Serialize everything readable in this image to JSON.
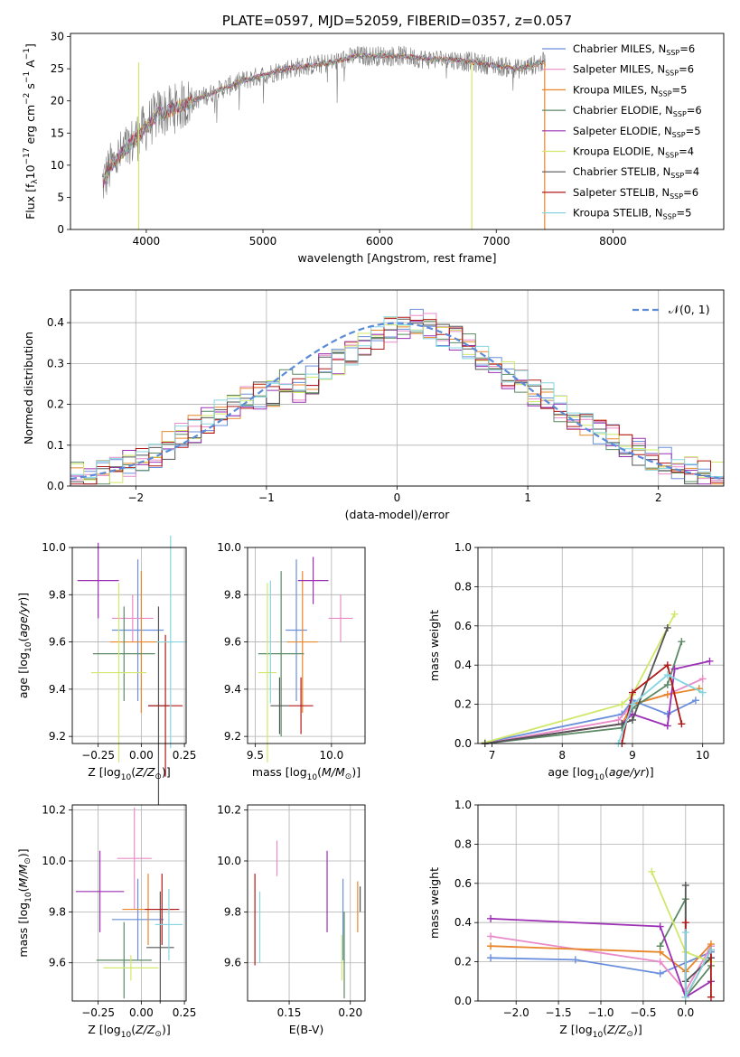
{
  "colors": [
    "#6a8fdc",
    "#e98bc8",
    "#e8862a",
    "#5b8a64",
    "#9c30b5",
    "#cfe86a",
    "#555555",
    "#b01919",
    "#86d4e0"
  ],
  "chart_data": [
    {
      "id": "spectrum",
      "type": "line",
      "title": "PLATE=0597, MJD=52059, FIBERID=0357, z=0.057",
      "xlabel": "wavelength [Angstrom, rest frame]",
      "ylabel": "Flux [f_λ10^-17 erg cm^-2 s^-1 A^-1]",
      "xlim": [
        3350,
        8950
      ],
      "ylim": [
        0,
        30.5
      ],
      "xticks": [
        4000,
        5000,
        6000,
        7000,
        8000
      ],
      "yticks": [
        0,
        5,
        10,
        15,
        20,
        25,
        30
      ],
      "grid": false,
      "legend": "right",
      "legend_entries": [
        {
          "base": "Chabrier MILES, N",
          "sub": "SSP",
          "tail": "=6"
        },
        {
          "base": "Salpeter MILES, N",
          "sub": "SSP",
          "tail": "=6"
        },
        {
          "base": "Kroupa MILES, N",
          "sub": "SSP",
          "tail": "=5"
        },
        {
          "base": "Chabrier ELODIE, N",
          "sub": "SSP",
          "tail": "=6"
        },
        {
          "base": "Salpeter ELODIE, N",
          "sub": "SSP",
          "tail": "=5"
        },
        {
          "base": "Kroupa ELODIE, N",
          "sub": "SSP",
          "tail": "=4"
        },
        {
          "base": "Chabrier STELIB, N",
          "sub": "SSP",
          "tail": "=4"
        },
        {
          "base": "Salpeter STELIB, N",
          "sub": "SSP",
          "tail": "=6"
        },
        {
          "base": "Kroupa STELIB, N",
          "sub": "SSP",
          "tail": "=5"
        }
      ],
      "continuum": {
        "x": [
          3620,
          3700,
          3800,
          3900,
          4000,
          4100,
          4200,
          4400,
          4600,
          4800,
          5000,
          5200,
          5400,
          5600,
          5800,
          6000,
          6200,
          6400,
          6600,
          6800,
          7000,
          7200,
          7400
        ],
        "y": [
          7,
          10,
          12,
          14,
          16,
          18,
          18.5,
          20,
          21.5,
          23,
          24,
          25,
          25.5,
          26,
          27,
          27,
          27,
          26.5,
          26.5,
          26,
          25.5,
          25,
          26
        ]
      }
    },
    {
      "id": "residuals",
      "type": "step",
      "xlabel": "(data-model)/error",
      "ylabel": "Normed distribution",
      "xlim": [
        -2.5,
        2.5
      ],
      "ylim": [
        0,
        0.48
      ],
      "xticks": [
        -2,
        -1,
        0,
        1,
        2
      ],
      "yticks": [
        0.0,
        0.1,
        0.2,
        0.3,
        0.4
      ],
      "grid": true,
      "legend": "top-right",
      "gauss_label": "𝒩(0, 1)",
      "bins": {
        "start": -2.5,
        "width": 0.1,
        "values": [
          0.03,
          0.025,
          0.03,
          0.04,
          0.055,
          0.07,
          0.08,
          0.1,
          0.12,
          0.14,
          0.16,
          0.18,
          0.19,
          0.21,
          0.22,
          0.23,
          0.25,
          0.24,
          0.26,
          0.29,
          0.3,
          0.32,
          0.34,
          0.36,
          0.38,
          0.39,
          0.4,
          0.39,
          0.37,
          0.36,
          0.34,
          0.32,
          0.3,
          0.27,
          0.25,
          0.23,
          0.22,
          0.19,
          0.17,
          0.15,
          0.13,
          0.12,
          0.1,
          0.085,
          0.07,
          0.06,
          0.05,
          0.04,
          0.03,
          0.03
        ]
      }
    },
    {
      "id": "age-vs-z",
      "type": "errorbar",
      "xlabel": "Z [log10(Z/Z⊙)]",
      "ylabel": "age  [log10(age/yr)]",
      "xlim": [
        -0.4,
        0.26
      ],
      "ylim": [
        9.17,
        10.0
      ],
      "xticks": [
        -0.25,
        0.0,
        0.25
      ],
      "xtick_labels": [
        "−0.25",
        "0.00",
        "0.25"
      ],
      "yticks": [
        9.2,
        9.4,
        9.6,
        9.8,
        10.0
      ],
      "grid": true,
      "points": [
        {
          "c": 0,
          "x": -0.02,
          "y": 9.65,
          "xerr": 0.15,
          "yerr": 0.3
        },
        {
          "c": 1,
          "x": -0.05,
          "y": 9.7,
          "xerr": 0.12,
          "yerr": 0.1
        },
        {
          "c": 2,
          "x": 0.0,
          "y": 9.6,
          "xerr": 0.18,
          "yerr": 0.3
        },
        {
          "c": 3,
          "x": -0.1,
          "y": 9.55,
          "xerr": 0.18,
          "yerr": 0.2
        },
        {
          "c": 4,
          "x": -0.25,
          "y": 9.86,
          "xerr": 0.12,
          "yerr": 0.16
        },
        {
          "c": 5,
          "x": -0.13,
          "y": 9.47,
          "xerr": 0.16,
          "yerr": 0.38
        },
        {
          "c": 6,
          "x": 0.1,
          "y": 9.33,
          "xerr": 0.06,
          "yerr": 0.42
        },
        {
          "c": 7,
          "x": 0.14,
          "y": 9.33,
          "xerr": 0.1,
          "yerr": 0.3
        },
        {
          "c": 8,
          "x": 0.17,
          "y": 9.6,
          "xerr": 0.08,
          "yerr": 0.45
        }
      ]
    },
    {
      "id": "age-vs-mass",
      "type": "errorbar",
      "xlabel": "mass [log10(M/M⊙)]",
      "ylabel": "",
      "xlim": [
        9.45,
        10.22
      ],
      "ylim": [
        9.17,
        10.0
      ],
      "xticks": [
        9.5,
        10.0
      ],
      "xtick_labels": [
        "9.5",
        "10.0"
      ],
      "yticks": [
        9.2,
        9.4,
        9.6,
        9.8,
        10.0
      ],
      "grid": true,
      "points": [
        {
          "c": 0,
          "x": 9.77,
          "y": 9.65,
          "xerr": 0.07,
          "yerr": 0.3
        },
        {
          "c": 1,
          "x": 10.06,
          "y": 9.7,
          "xerr": 0.08,
          "yerr": 0.1
        },
        {
          "c": 2,
          "x": 9.81,
          "y": 9.6,
          "xerr": 0.1,
          "yerr": 0.3
        },
        {
          "c": 3,
          "x": 9.67,
          "y": 9.55,
          "xerr": 0.15,
          "yerr": 0.35
        },
        {
          "c": 4,
          "x": 9.88,
          "y": 9.86,
          "xerr": 0.1,
          "yerr": 0.1
        },
        {
          "c": 5,
          "x": 9.58,
          "y": 9.47,
          "xerr": 0.06,
          "yerr": 0.38
        },
        {
          "c": 6,
          "x": 9.66,
          "y": 9.33,
          "xerr": 0.06,
          "yerr": 0.12
        },
        {
          "c": 7,
          "x": 9.8,
          "y": 9.33,
          "xerr": 0.08,
          "yerr": 0.12
        },
        {
          "c": 8,
          "x": 9.6,
          "y": 9.6,
          "xerr": 0.0,
          "yerr": 0.26
        }
      ]
    },
    {
      "id": "weight-vs-age",
      "type": "line",
      "xlabel": "age  [log10(age/yr)]",
      "ylabel": "mass weight",
      "xlim": [
        6.8,
        10.3
      ],
      "ylim": [
        0,
        1
      ],
      "xticks": [
        7,
        8,
        9,
        10
      ],
      "yticks": [
        0.0,
        0.2,
        0.4,
        0.6,
        0.8,
        1.0
      ],
      "grid": true,
      "series": [
        {
          "c": 0,
          "x": [
            6.9,
            8.85,
            9.0,
            9.5,
            9.9
          ],
          "y": [
            0.005,
            0.15,
            0.22,
            0.15,
            0.22
          ]
        },
        {
          "c": 1,
          "x": [
            6.9,
            8.8,
            9.0,
            9.5,
            10.0
          ],
          "y": [
            0.0,
            0.12,
            0.2,
            0.25,
            0.33
          ]
        },
        {
          "c": 2,
          "x": [
            6.9,
            8.85,
            9.0,
            9.5,
            9.95
          ],
          "y": [
            0.0,
            0.1,
            0.2,
            0.25,
            0.28
          ]
        },
        {
          "c": 3,
          "x": [
            6.9,
            8.85,
            9.0,
            9.5,
            9.7
          ],
          "y": [
            0.0,
            0.08,
            0.18,
            0.3,
            0.52
          ]
        },
        {
          "c": 4,
          "x": [
            6.9,
            8.85,
            9.0,
            9.5,
            9.6,
            10.1
          ],
          "y": [
            0.0,
            0.1,
            0.15,
            0.09,
            0.38,
            0.42
          ]
        },
        {
          "c": 5,
          "x": [
            6.9,
            8.85,
            9.0,
            9.6
          ],
          "y": [
            0.005,
            0.2,
            0.25,
            0.66
          ]
        },
        {
          "c": 6,
          "x": [
            6.9,
            8.85,
            9.0,
            9.5
          ],
          "y": [
            0.0,
            0.1,
            0.12,
            0.59
          ]
        },
        {
          "c": 7,
          "x": [
            8.85,
            9.0,
            9.5,
            9.7
          ],
          "y": [
            0.0,
            0.26,
            0.4,
            0.1
          ]
        },
        {
          "c": 8,
          "x": [
            8.8,
            9.0,
            9.5,
            10.0
          ],
          "y": [
            0.0,
            0.2,
            0.35,
            0.26
          ]
        }
      ]
    },
    {
      "id": "mass-vs-z",
      "type": "errorbar",
      "xlabel": "Z [log10(Z/Z⊙)]",
      "ylabel": "mass [log10(M/M⊙)]",
      "xlim": [
        -0.4,
        0.26
      ],
      "ylim": [
        9.45,
        10.22
      ],
      "xticks": [
        -0.25,
        0.0,
        0.25
      ],
      "xtick_labels": [
        "−0.25",
        "0.00",
        "0.25"
      ],
      "yticks": [
        9.6,
        9.8,
        10.0,
        10.2
      ],
      "grid": true,
      "points": [
        {
          "c": 0,
          "x": -0.02,
          "y": 9.77,
          "xerr": 0.15,
          "yerr": 0.16
        },
        {
          "c": 1,
          "x": -0.04,
          "y": 10.01,
          "xerr": 0.1,
          "yerr": 0.2
        },
        {
          "c": 2,
          "x": 0.04,
          "y": 9.81,
          "xerr": 0.15,
          "yerr": 0.14
        },
        {
          "c": 3,
          "x": -0.1,
          "y": 9.61,
          "xerr": 0.16,
          "yerr": 0.15
        },
        {
          "c": 4,
          "x": -0.24,
          "y": 9.88,
          "xerr": 0.14,
          "yerr": 0.16
        },
        {
          "c": 5,
          "x": -0.06,
          "y": 9.58,
          "xerr": 0.16,
          "yerr": 0.05
        },
        {
          "c": 6,
          "x": 0.11,
          "y": 9.66,
          "xerr": 0.08,
          "yerr": 0.22
        },
        {
          "c": 7,
          "x": 0.12,
          "y": 9.81,
          "xerr": 0.1,
          "yerr": 0.14
        },
        {
          "c": 8,
          "x": 0.16,
          "y": 9.75,
          "xerr": 0.08,
          "yerr": 0.14
        }
      ]
    },
    {
      "id": "mass-vs-ebv",
      "type": "errorbar",
      "xlabel": "E(B-V)",
      "ylabel": "",
      "xlim": [
        0.116,
        0.212
      ],
      "ylim": [
        9.45,
        10.22
      ],
      "xticks": [
        0.15,
        0.2
      ],
      "xtick_labels": [
        "0.15",
        "0.20"
      ],
      "yticks": [
        9.6,
        9.8,
        10.0,
        10.2
      ],
      "grid": true,
      "points": [
        {
          "c": 0,
          "x": 0.194,
          "y": 9.77,
          "xerr": 0,
          "yerr": 0.16
        },
        {
          "c": 1,
          "x": 0.14,
          "y": 10.01,
          "xerr": 0,
          "yerr": 0.07
        },
        {
          "c": 2,
          "x": 0.206,
          "y": 9.82,
          "xerr": 0,
          "yerr": 0.1
        },
        {
          "c": 3,
          "x": 0.195,
          "y": 9.63,
          "xerr": 0,
          "yerr": 0.17
        },
        {
          "c": 4,
          "x": 0.181,
          "y": 9.88,
          "xerr": 0,
          "yerr": 0.16
        },
        {
          "c": 5,
          "x": 0.193,
          "y": 9.62,
          "xerr": 0,
          "yerr": 0.09
        },
        {
          "c": 6,
          "x": 0.208,
          "y": 9.85,
          "xerr": 0,
          "yerr": 0.05
        },
        {
          "c": 7,
          "x": 0.122,
          "y": 9.77,
          "xerr": 0,
          "yerr": 0.18
        },
        {
          "c": 8,
          "x": 0.126,
          "y": 9.74,
          "xerr": 0,
          "yerr": 0.14
        }
      ]
    },
    {
      "id": "weight-vs-z",
      "type": "line",
      "xlabel": "Z [log10(Z/Z⊙)]",
      "ylabel": "mass weight",
      "xlim": [
        -2.45,
        0.45
      ],
      "ylim": [
        0,
        1
      ],
      "xticks": [
        -2.0,
        -1.5,
        -1.0,
        -0.5,
        0.0
      ],
      "xtick_labels": [
        "−2.0",
        "−1.5",
        "−1.0",
        "−0.5",
        "0.0"
      ],
      "yticks": [
        0.0,
        0.2,
        0.4,
        0.6,
        0.8,
        1.0
      ],
      "grid": true,
      "series": [
        {
          "c": 0,
          "x": [
            -2.3,
            -1.3,
            -0.3,
            0.3
          ],
          "y": [
            0.22,
            0.21,
            0.14,
            0.25
          ]
        },
        {
          "c": 1,
          "x": [
            -2.3,
            -0.3,
            0.0,
            0.3
          ],
          "y": [
            0.33,
            0.2,
            0.05,
            0.28
          ]
        },
        {
          "c": 2,
          "x": [
            -2.3,
            -0.3,
            0.0,
            0.3
          ],
          "y": [
            0.28,
            0.25,
            0.15,
            0.29
          ]
        },
        {
          "c": 3,
          "x": [
            -0.3,
            0.0,
            0.0,
            0.3
          ],
          "y": [
            0.28,
            0.52,
            0.02,
            0.18
          ]
        },
        {
          "c": 4,
          "x": [
            -2.3,
            -0.3,
            0.0,
            0.3
          ],
          "y": [
            0.42,
            0.38,
            0.02,
            0.1
          ]
        },
        {
          "c": 5,
          "x": [
            -0.4,
            0.0,
            0.3
          ],
          "y": [
            0.66,
            0.25,
            0.2
          ]
        },
        {
          "c": 6,
          "x": [
            0.0,
            0.0,
            0.3
          ],
          "y": [
            0.59,
            0.1,
            0.22
          ]
        },
        {
          "c": 7,
          "x": [
            0.0,
            0.0,
            0.3,
            0.3
          ],
          "y": [
            0.4,
            0.02,
            0.26,
            0.02
          ]
        },
        {
          "c": 8,
          "x": [
            0.0,
            0.0,
            0.3
          ],
          "y": [
            0.35,
            0.02,
            0.26
          ]
        }
      ]
    }
  ]
}
